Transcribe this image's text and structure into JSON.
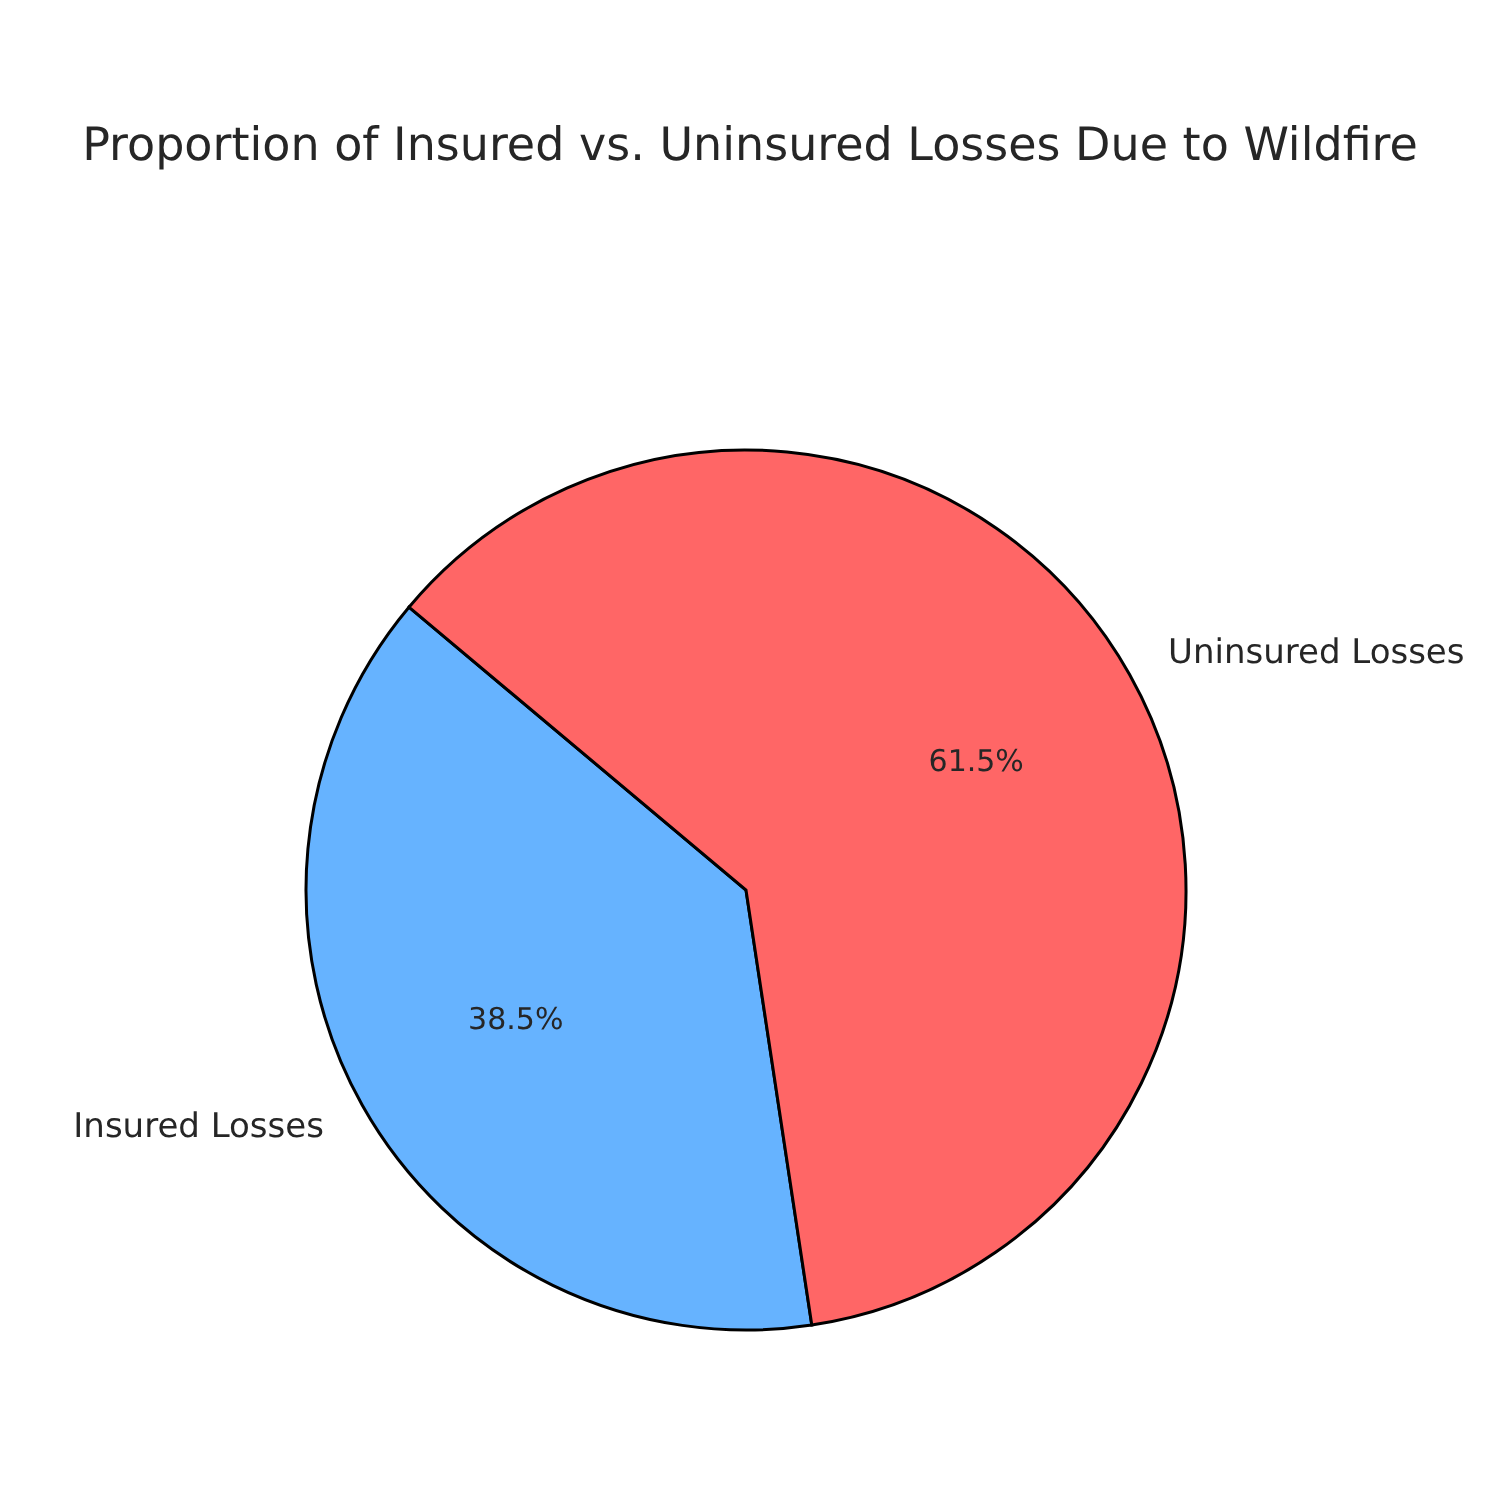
{
  "chart_data": {
    "type": "pie",
    "title": "Proportion of Insured vs. Uninsured Losses Due to Wildfire",
    "categories": [
      "Insured Losses",
      "Uninsured Losses"
    ],
    "values": [
      38.5,
      61.5
    ],
    "colors": [
      "#66b3ff",
      "#ff6666"
    ],
    "value_labels": [
      "38.5%",
      "61.5%"
    ],
    "legend": false
  }
}
